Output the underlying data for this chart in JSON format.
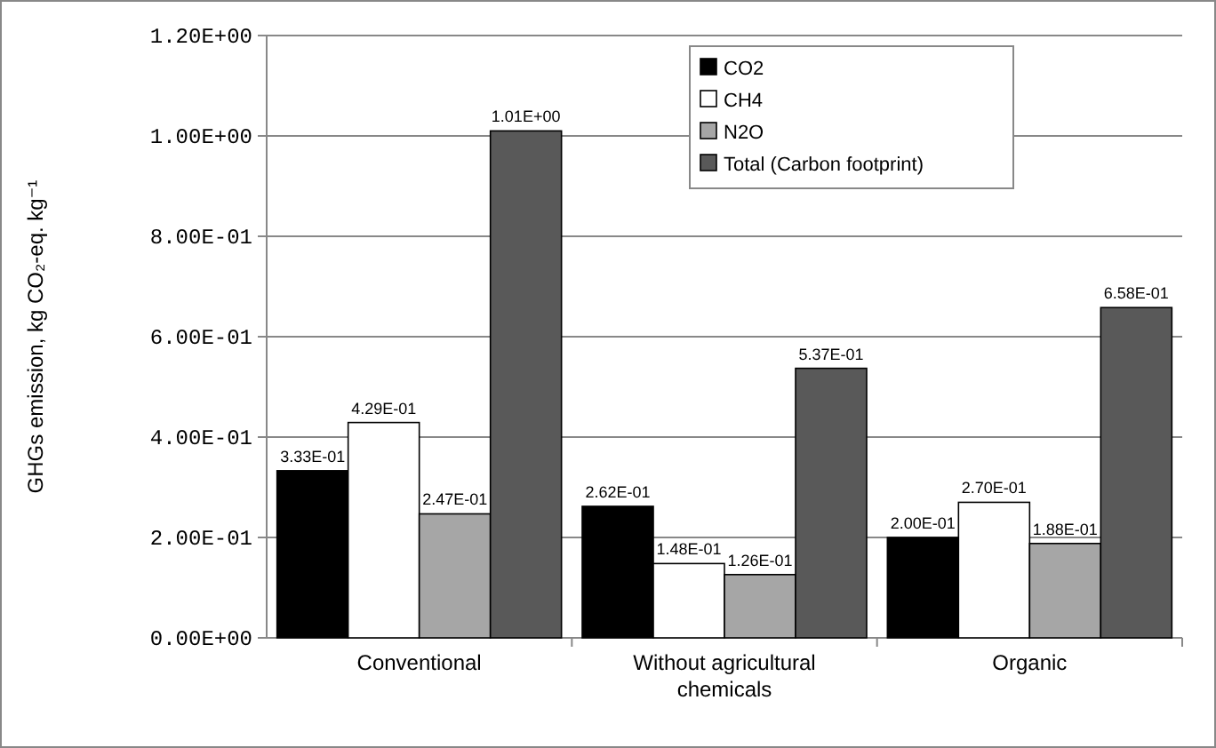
{
  "chart_data": {
    "type": "bar",
    "ylabel": "GHGs emission, kg CO₂-eq. kg⁻¹",
    "categories": [
      "Conventional",
      "Without agricultural chemicals",
      "Organic"
    ],
    "series": [
      {
        "name": "CO2",
        "color": "#000000",
        "values": [
          0.333,
          0.262,
          0.2
        ],
        "value_labels": [
          "3.33E-01",
          "2.62E-01",
          "2.00E-01"
        ]
      },
      {
        "name": "CH4",
        "color": "#ffffff",
        "values": [
          0.429,
          0.148,
          0.27
        ],
        "value_labels": [
          "4.29E-01",
          "1.48E-01",
          "2.70E-01"
        ]
      },
      {
        "name": "N2O",
        "color": "#a6a6a6",
        "values": [
          0.247,
          0.126,
          0.188
        ],
        "value_labels": [
          "2.47E-01",
          "1.26E-01",
          "1.88E-01"
        ]
      },
      {
        "name": "Total (Carbon footprint)",
        "color": "#595959",
        "values": [
          1.01,
          0.537,
          0.658
        ],
        "value_labels": [
          "1.01E+00",
          "5.37E-01",
          "6.58E-01"
        ]
      }
    ],
    "ylim": [
      0,
      1.2
    ],
    "yticks": [
      {
        "value": 0,
        "label": "0.00E+00"
      },
      {
        "value": 0.2,
        "label": "2.00E-01"
      },
      {
        "value": 0.4,
        "label": "4.00E-01"
      },
      {
        "value": 0.6,
        "label": "6.00E-01"
      },
      {
        "value": 0.8,
        "label": "8.00E-01"
      },
      {
        "value": 1.0,
        "label": "1.00E+00"
      },
      {
        "value": 1.2,
        "label": "1.20E+00"
      }
    ],
    "grid": "y",
    "legend": "top right"
  }
}
